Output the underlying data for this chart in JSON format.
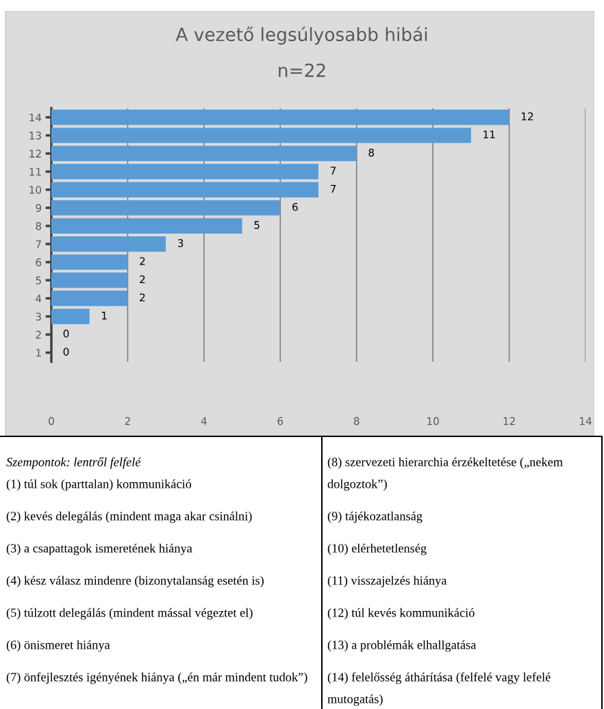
{
  "chart_data": {
    "type": "bar",
    "orientation": "horizontal",
    "title": "A vezető legsúlyosabb hibái",
    "subtitle": "n=22",
    "categories": [
      "14",
      "13",
      "12",
      "11",
      "10",
      "9",
      "8",
      "7",
      "6",
      "5",
      "4",
      "3",
      "2",
      "1"
    ],
    "values": [
      12,
      11,
      8,
      7,
      7,
      6,
      5,
      3,
      2,
      2,
      2,
      1,
      0,
      0
    ],
    "color": "#5b9bd5",
    "data_labels": true,
    "grid": "x",
    "xlim": [
      0,
      14
    ],
    "xticks": [
      0,
      2,
      4,
      6,
      8,
      10,
      12,
      14
    ],
    "annotations": [
      "Szempontok: lentről felfelé",
      "(1) túl sok (parttalan) kommunikáció",
      "(2) kevés delegálás (mindent maga akar csinálni)",
      "(3) a csapattagok ismeretének hiánya",
      "(4) kész válasz mindenre (bizonytalanság esetén is)",
      "(5) túlzott delegálás (mindent mással végeztet el)",
      "(6) önismeret hiánya",
      "(7) önfejlesztés igényének hiánya („én már mindent tudok”)",
      "(8) szervezeti hierarchia érzékeltetése („nekem dolgoztok”)",
      "(9) tájékozatlanság",
      "(10) elérhetetlenség",
      "(11) visszajelzés hiánya",
      "(12) túl kevés kommunikáció",
      "(13) a problémák elhallgatása",
      "(14) felelősség áthárítása (felfelé vagy lefelé mutogatás)"
    ]
  }
}
